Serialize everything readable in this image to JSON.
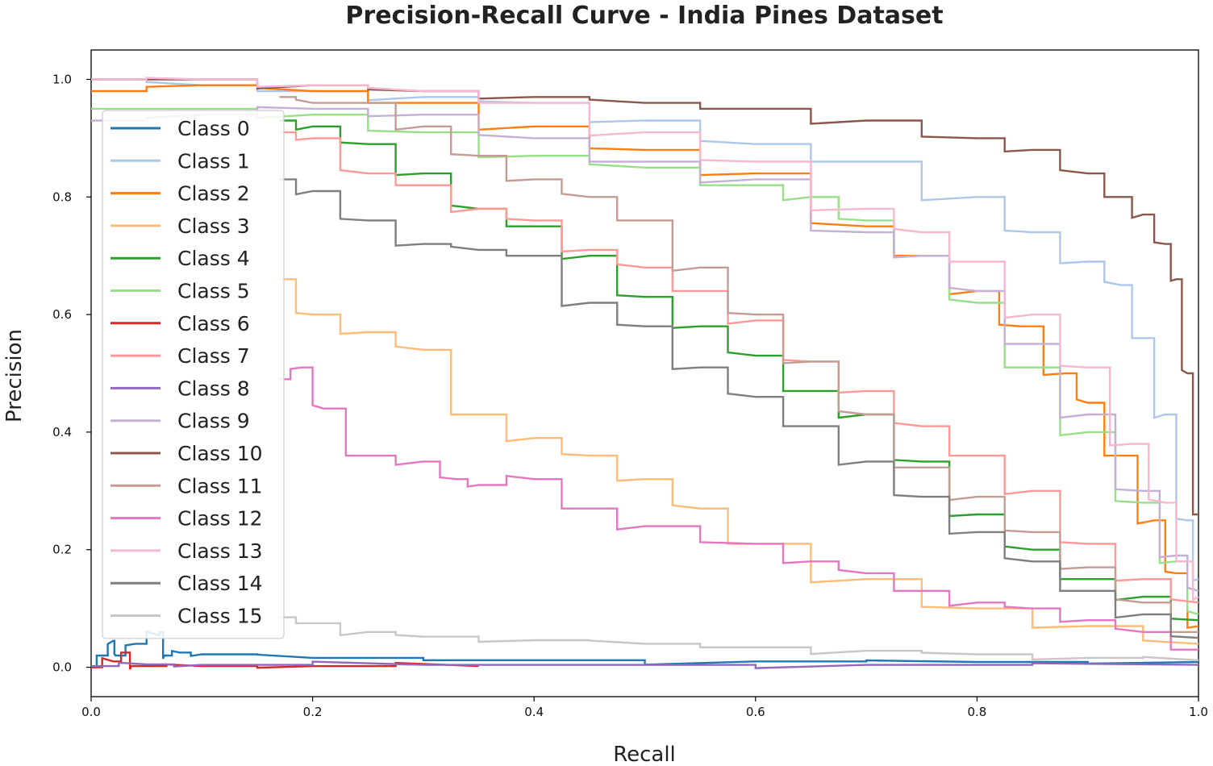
{
  "chart_data": {
    "type": "line",
    "title": "Precision-Recall Curve - India Pines Dataset",
    "xlabel": "Recall",
    "ylabel": "Precision",
    "xlim": [
      0.0,
      1.0
    ],
    "ylim": [
      -0.05,
      1.05
    ],
    "xticks": [
      0.0,
      0.2,
      0.4,
      0.6,
      0.8,
      1.0
    ],
    "yticks": [
      0.0,
      0.2,
      0.4,
      0.6,
      0.8,
      1.0
    ],
    "xtick_labels": [
      "0.0",
      "0.2",
      "0.4",
      "0.6",
      "0.8",
      "1.0"
    ],
    "ytick_labels": [
      "0.0",
      "0.2",
      "0.4",
      "0.6",
      "0.8",
      "1.0"
    ],
    "grid": false,
    "legend_position": "upper-left",
    "series": [
      {
        "name": "Class 0",
        "color": "#1f77b4",
        "x": [
          0,
          0.01,
          0.02,
          0.022,
          0.04,
          0.06,
          0.064,
          0.066,
          0.08,
          0.1,
          0.2,
          0.4,
          0.6,
          0.8,
          1.0
        ],
        "y": [
          0,
          0.02,
          0.045,
          0.02,
          0.04,
          0.055,
          0.06,
          0.02,
          0.025,
          0.022,
          0.016,
          0.012,
          0.01,
          0.009,
          0.009
        ]
      },
      {
        "name": "Class 1",
        "color": "#aec7e8",
        "x": [
          0,
          0.1,
          0.2,
          0.3,
          0.4,
          0.5,
          0.6,
          0.7,
          0.8,
          0.85,
          0.9,
          0.93,
          0.95,
          0.97,
          0.99,
          1.0
        ],
        "y": [
          1.0,
          0.99,
          0.98,
          0.97,
          0.96,
          0.93,
          0.89,
          0.86,
          0.8,
          0.74,
          0.69,
          0.65,
          0.56,
          0.43,
          0.25,
          0.15
        ]
      },
      {
        "name": "Class 2",
        "color": "#ff7f0e",
        "x": [
          0,
          0.1,
          0.2,
          0.3,
          0.4,
          0.5,
          0.6,
          0.7,
          0.75,
          0.8,
          0.84,
          0.88,
          0.9,
          0.93,
          0.96,
          0.98,
          1.0
        ],
        "y": [
          0.98,
          0.99,
          0.98,
          0.96,
          0.92,
          0.88,
          0.84,
          0.75,
          0.7,
          0.64,
          0.58,
          0.5,
          0.45,
          0.36,
          0.25,
          0.16,
          0.07
        ]
      },
      {
        "name": "Class 3",
        "color": "#ffbb78",
        "x": [
          0.17,
          0.2,
          0.25,
          0.3,
          0.35,
          0.4,
          0.45,
          0.5,
          0.55,
          0.6,
          0.7,
          0.8,
          0.9,
          1.0
        ],
        "y": [
          0.66,
          0.6,
          0.57,
          0.54,
          0.43,
          0.39,
          0.36,
          0.32,
          0.27,
          0.21,
          0.15,
          0.1,
          0.07,
          0.04
        ]
      },
      {
        "name": "Class 4",
        "color": "#2ca02c",
        "x": [
          0.17,
          0.2,
          0.25,
          0.3,
          0.35,
          0.4,
          0.45,
          0.5,
          0.55,
          0.6,
          0.65,
          0.7,
          0.75,
          0.8,
          0.85,
          0.9,
          0.95,
          1.0
        ],
        "y": [
          0.93,
          0.92,
          0.89,
          0.84,
          0.78,
          0.75,
          0.7,
          0.63,
          0.58,
          0.53,
          0.47,
          0.43,
          0.35,
          0.26,
          0.2,
          0.15,
          0.12,
          0.08
        ]
      },
      {
        "name": "Class 5",
        "color": "#98df8a",
        "x": [
          0,
          0.1,
          0.2,
          0.3,
          0.4,
          0.5,
          0.6,
          0.65,
          0.7,
          0.75,
          0.8,
          0.85,
          0.9,
          0.95,
          0.98,
          1.0
        ],
        "y": [
          0.95,
          0.95,
          0.94,
          0.91,
          0.87,
          0.85,
          0.82,
          0.8,
          0.76,
          0.7,
          0.62,
          0.51,
          0.4,
          0.28,
          0.18,
          0.09
        ]
      },
      {
        "name": "Class 6",
        "color": "#d62728",
        "x": [
          0,
          0.02,
          0.034,
          0.036,
          0.1,
          0.2,
          0.35
        ],
        "y": [
          0,
          0.01,
          0.025,
          0.002,
          0.002,
          0.002,
          0.002
        ]
      },
      {
        "name": "Class 7",
        "color": "#ff9896",
        "x": [
          0.17,
          0.2,
          0.25,
          0.3,
          0.35,
          0.4,
          0.45,
          0.5,
          0.55,
          0.6,
          0.65,
          0.7,
          0.75,
          0.8,
          0.85,
          0.9,
          0.95,
          1.0
        ],
        "y": [
          0.91,
          0.9,
          0.84,
          0.82,
          0.78,
          0.76,
          0.71,
          0.68,
          0.64,
          0.59,
          0.52,
          0.47,
          0.41,
          0.36,
          0.3,
          0.21,
          0.15,
          0.11
        ]
      },
      {
        "name": "Class 8",
        "color": "#9467bd",
        "x": [
          0,
          0.05,
          0.1,
          0.3,
          0.5,
          0.7,
          1.0
        ],
        "y": [
          0.002,
          0.005,
          0.004,
          0.004,
          0.004,
          0.004,
          0.004
        ]
      },
      {
        "name": "Class 9",
        "color": "#c5b0d5",
        "x": [
          0,
          0.1,
          0.2,
          0.3,
          0.4,
          0.5,
          0.6,
          0.7,
          0.75,
          0.8,
          0.85,
          0.9,
          0.95,
          0.98,
          1.0
        ],
        "y": [
          0.93,
          0.94,
          0.95,
          0.94,
          0.9,
          0.86,
          0.83,
          0.74,
          0.7,
          0.64,
          0.55,
          0.43,
          0.3,
          0.19,
          0.13
        ]
      },
      {
        "name": "Class 10",
        "color": "#8c564b",
        "x": [
          0,
          0.1,
          0.2,
          0.3,
          0.4,
          0.5,
          0.6,
          0.7,
          0.8,
          0.85,
          0.9,
          0.93,
          0.95,
          0.97,
          0.98,
          0.99,
          1.0
        ],
        "y": [
          1.0,
          1.0,
          0.99,
          0.98,
          0.97,
          0.96,
          0.95,
          0.93,
          0.9,
          0.88,
          0.84,
          0.8,
          0.77,
          0.72,
          0.66,
          0.5,
          0.26
        ]
      },
      {
        "name": "Class 11",
        "color": "#c49c94",
        "x": [
          0.17,
          0.2,
          0.25,
          0.3,
          0.35,
          0.4,
          0.45,
          0.5,
          0.55,
          0.6,
          0.65,
          0.7,
          0.75,
          0.8,
          0.85,
          0.9,
          0.95,
          1.0
        ],
        "y": [
          0.97,
          0.96,
          0.96,
          0.92,
          0.87,
          0.83,
          0.8,
          0.76,
          0.68,
          0.6,
          0.52,
          0.43,
          0.34,
          0.29,
          0.23,
          0.17,
          0.11,
          0.06
        ]
      },
      {
        "name": "Class 12",
        "color": "#e377c2",
        "x": [
          0.17,
          0.19,
          0.21,
          0.25,
          0.3,
          0.33,
          0.35,
          0.4,
          0.45,
          0.5,
          0.6,
          0.65,
          0.7,
          0.75,
          0.8,
          0.85,
          0.9,
          0.95,
          1.0
        ],
        "y": [
          0.49,
          0.51,
          0.44,
          0.36,
          0.35,
          0.32,
          0.31,
          0.32,
          0.27,
          0.24,
          0.21,
          0.18,
          0.16,
          0.13,
          0.11,
          0.1,
          0.08,
          0.06,
          0.03
        ]
      },
      {
        "name": "Class 13",
        "color": "#f7b6d2",
        "x": [
          0,
          0.1,
          0.2,
          0.3,
          0.4,
          0.5,
          0.6,
          0.7,
          0.75,
          0.8,
          0.85,
          0.9,
          0.94,
          0.97,
          0.99,
          1.0
        ],
        "y": [
          1.0,
          1.0,
          0.99,
          0.98,
          0.96,
          0.91,
          0.86,
          0.78,
          0.74,
          0.69,
          0.6,
          0.51,
          0.38,
          0.28,
          0.18,
          0.12
        ]
      },
      {
        "name": "Class 14",
        "color": "#7f7f7f",
        "x": [
          0.17,
          0.2,
          0.25,
          0.3,
          0.35,
          0.4,
          0.45,
          0.5,
          0.55,
          0.6,
          0.65,
          0.7,
          0.75,
          0.8,
          0.85,
          0.9,
          0.95,
          1.0
        ],
        "y": [
          0.83,
          0.81,
          0.76,
          0.72,
          0.71,
          0.7,
          0.62,
          0.58,
          0.51,
          0.46,
          0.41,
          0.35,
          0.29,
          0.23,
          0.18,
          0.13,
          0.09,
          0.05
        ]
      },
      {
        "name": "Class 15",
        "color": "#c7c7c7",
        "x": [
          0.17,
          0.2,
          0.25,
          0.3,
          0.4,
          0.5,
          0.6,
          0.7,
          0.8,
          0.9,
          1.0
        ],
        "y": [
          0.085,
          0.075,
          0.06,
          0.052,
          0.046,
          0.04,
          0.034,
          0.028,
          0.022,
          0.016,
          0.012
        ]
      }
    ]
  }
}
